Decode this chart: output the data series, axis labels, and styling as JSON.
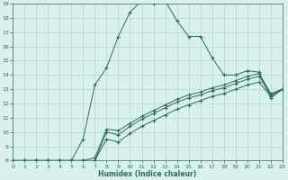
{
  "xlabel": "Humidex (Indice chaleur)",
  "xlim": [
    0,
    23
  ],
  "ylim": [
    8,
    19
  ],
  "xticks": [
    0,
    1,
    2,
    3,
    4,
    5,
    6,
    7,
    8,
    9,
    10,
    11,
    12,
    13,
    14,
    15,
    16,
    17,
    18,
    19,
    20,
    21,
    22,
    23
  ],
  "yticks": [
    8,
    9,
    10,
    11,
    12,
    13,
    14,
    15,
    16,
    17,
    18,
    19
  ],
  "background_color": "#d8f0ee",
  "grid_color": "#b0d8d4",
  "line_color": "#2e6b60",
  "line1_x": [
    0,
    1,
    2,
    3,
    4,
    5,
    6,
    7,
    8,
    9,
    10,
    11,
    12,
    13,
    14,
    15,
    16,
    17,
    18,
    19,
    20,
    21,
    22,
    23
  ],
  "line1_y": [
    8.0,
    8.0,
    8.0,
    8.0,
    8.0,
    8.0,
    9.5,
    13.3,
    14.5,
    16.7,
    18.4,
    19.2,
    19.0,
    19.2,
    17.8,
    16.7,
    16.7,
    15.2,
    14.0,
    14.0,
    14.3,
    14.2,
    12.4,
    13.0
  ],
  "line2_x": [
    0,
    1,
    2,
    3,
    4,
    5,
    6,
    7,
    8,
    9,
    10,
    11,
    12,
    13,
    14,
    15,
    16,
    17,
    18,
    19,
    20,
    21,
    22,
    23
  ],
  "line2_y": [
    8.0,
    8.0,
    8.0,
    8.0,
    8.0,
    8.0,
    8.0,
    8.0,
    9.5,
    9.3,
    9.9,
    10.4,
    10.8,
    11.2,
    11.6,
    11.9,
    12.2,
    12.5,
    12.7,
    13.0,
    13.3,
    13.5,
    12.5,
    13.0
  ],
  "line3_x": [
    0,
    1,
    2,
    3,
    4,
    5,
    6,
    7,
    8,
    9,
    10,
    11,
    12,
    13,
    14,
    15,
    16,
    17,
    18,
    19,
    20,
    21,
    22,
    23
  ],
  "line3_y": [
    8.0,
    8.0,
    8.0,
    8.0,
    8.0,
    8.0,
    8.0,
    8.0,
    10.0,
    9.8,
    10.4,
    10.9,
    11.3,
    11.7,
    12.1,
    12.4,
    12.6,
    12.9,
    13.1,
    13.4,
    13.7,
    13.9,
    12.6,
    13.0
  ],
  "line4_x": [
    0,
    1,
    2,
    3,
    4,
    5,
    6,
    7,
    8,
    9,
    10,
    11,
    12,
    13,
    14,
    15,
    16,
    17,
    18,
    19,
    20,
    21,
    22,
    23
  ],
  "line4_y": [
    8.0,
    8.0,
    8.0,
    8.0,
    8.0,
    8.0,
    8.0,
    8.2,
    10.2,
    10.1,
    10.6,
    11.1,
    11.5,
    11.9,
    12.3,
    12.6,
    12.8,
    13.1,
    13.3,
    13.6,
    13.9,
    14.1,
    12.7,
    13.0
  ]
}
